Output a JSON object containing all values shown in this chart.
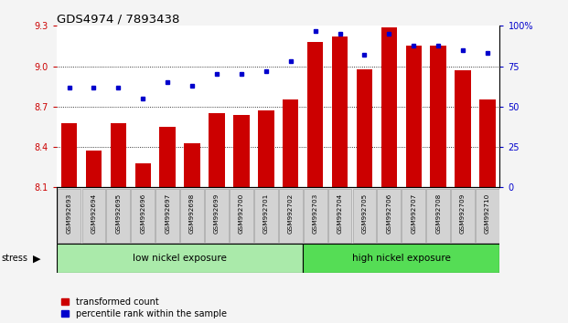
{
  "title": "GDS4974 / 7893438",
  "samples": [
    "GSM992693",
    "GSM992694",
    "GSM992695",
    "GSM992696",
    "GSM992697",
    "GSM992698",
    "GSM992699",
    "GSM992700",
    "GSM992701",
    "GSM992702",
    "GSM992703",
    "GSM992704",
    "GSM992705",
    "GSM992706",
    "GSM992707",
    "GSM992708",
    "GSM992709",
    "GSM992710"
  ],
  "bar_values": [
    8.58,
    8.37,
    8.58,
    8.28,
    8.55,
    8.43,
    8.65,
    8.64,
    8.67,
    8.75,
    9.18,
    9.22,
    8.98,
    9.29,
    9.15,
    9.15,
    8.97,
    8.75
  ],
  "dot_values": [
    62,
    62,
    62,
    55,
    65,
    63,
    70,
    70,
    72,
    78,
    97,
    95,
    82,
    95,
    88,
    88,
    85,
    83
  ],
  "ylim": [
    8.1,
    9.3
  ],
  "y2lim": [
    0,
    100
  ],
  "bar_color": "#cc0000",
  "dot_color": "#0000cc",
  "fig_bg": "#f4f4f4",
  "plot_bg": "#ffffff",
  "low_group": "low nickel exposure",
  "high_group": "high nickel exposure",
  "low_count": 10,
  "high_count": 8,
  "stress_label": "stress",
  "legend_bar": "transformed count",
  "legend_dot": "percentile rank within the sample",
  "yticks": [
    8.1,
    8.4,
    8.7,
    9.0,
    9.3
  ],
  "y2ticks": [
    0,
    25,
    50,
    75,
    100
  ],
  "low_color": "#aaeaaa",
  "high_color": "#55dd55"
}
